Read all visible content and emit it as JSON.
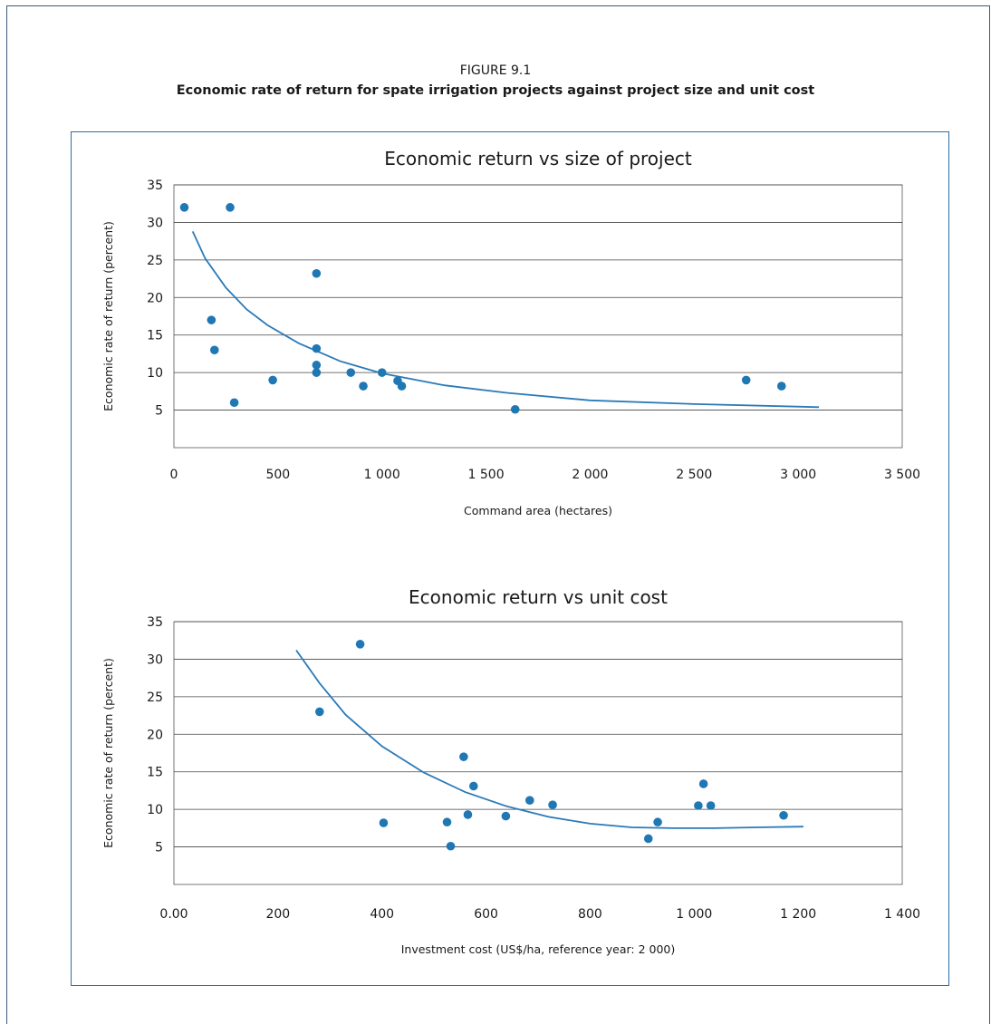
{
  "figure": {
    "label": "FIGURE 9.1",
    "title": "Economic rate of return for spate irrigation projects against project size and unit cost"
  },
  "chart_data": [
    {
      "type": "scatter",
      "title": "Economic return vs size of project",
      "xlabel": "Command area (hectares)",
      "ylabel": "Economic rate of return (percent)",
      "xlim": [
        0,
        3500
      ],
      "ylim": [
        0,
        35
      ],
      "x_ticks": [
        0,
        500,
        1000,
        1500,
        2000,
        2500,
        3000,
        3500
      ],
      "x_tick_labels": [
        "0",
        "500",
        "1 000",
        "1 500",
        "2 000",
        "2 500",
        "3 000",
        "3 500"
      ],
      "y_ticks": [
        5,
        10,
        15,
        20,
        25,
        30,
        35
      ],
      "y_tick_labels": [
        "5",
        "10",
        "15",
        "20",
        "25",
        "30",
        "35"
      ],
      "grid": "horizontal",
      "marker_color": "#1f77b4",
      "trend_color": "#2a7ab8",
      "points": [
        {
          "x": 50,
          "y": 32
        },
        {
          "x": 270,
          "y": 32
        },
        {
          "x": 180,
          "y": 17
        },
        {
          "x": 195,
          "y": 13
        },
        {
          "x": 290,
          "y": 6
        },
        {
          "x": 475,
          "y": 9
        },
        {
          "x": 685,
          "y": 23.2
        },
        {
          "x": 685,
          "y": 13.2
        },
        {
          "x": 685,
          "y": 11
        },
        {
          "x": 685,
          "y": 10
        },
        {
          "x": 850,
          "y": 10
        },
        {
          "x": 910,
          "y": 8.2
        },
        {
          "x": 1000,
          "y": 10
        },
        {
          "x": 1075,
          "y": 8.9
        },
        {
          "x": 1095,
          "y": 8.2
        },
        {
          "x": 1640,
          "y": 5.1
        },
        {
          "x": 2750,
          "y": 9
        },
        {
          "x": 2920,
          "y": 8.2
        }
      ],
      "trend": {
        "x": [
          90,
          150,
          250,
          350,
          450,
          600,
          800,
          1000,
          1300,
          1600,
          2000,
          2500,
          3100
        ],
        "y": [
          28.8,
          25.2,
          21.3,
          18.4,
          16.3,
          13.9,
          11.5,
          9.9,
          8.3,
          7.3,
          6.3,
          5.8,
          5.4
        ]
      }
    },
    {
      "type": "scatter",
      "title": "Economic return vs unit cost",
      "xlabel": "Investment cost (US$/ha, reference year: 2 000)",
      "ylabel": "Economic rate of return (percent)",
      "xlim": [
        0,
        1400
      ],
      "ylim": [
        0,
        35
      ],
      "x_ticks": [
        0,
        200,
        400,
        600,
        800,
        1000,
        1200,
        1400
      ],
      "x_tick_labels": [
        "0.00",
        "200",
        "400",
        "600",
        "800",
        "1 000",
        "1 200",
        "1 400"
      ],
      "y_ticks": [
        5,
        10,
        15,
        20,
        25,
        30,
        35
      ],
      "y_tick_labels": [
        "5",
        "10",
        "15",
        "20",
        "25",
        "30",
        "35"
      ],
      "grid": "horizontal",
      "marker_color": "#1f77b4",
      "trend_color": "#2a7ab8",
      "points": [
        {
          "x": 358,
          "y": 32
        },
        {
          "x": 280,
          "y": 23
        },
        {
          "x": 403,
          "y": 8.2
        },
        {
          "x": 525,
          "y": 8.3
        },
        {
          "x": 532,
          "y": 5.1
        },
        {
          "x": 557,
          "y": 17
        },
        {
          "x": 565,
          "y": 9.3
        },
        {
          "x": 576,
          "y": 13.1
        },
        {
          "x": 638,
          "y": 9.1
        },
        {
          "x": 684,
          "y": 11.2
        },
        {
          "x": 728,
          "y": 10.6
        },
        {
          "x": 912,
          "y": 6.1
        },
        {
          "x": 930,
          "y": 8.3
        },
        {
          "x": 1008,
          "y": 10.5
        },
        {
          "x": 1018,
          "y": 13.4
        },
        {
          "x": 1032,
          "y": 10.5
        },
        {
          "x": 1172,
          "y": 9.2
        }
      ],
      "trend": {
        "x": [
          235,
          280,
          330,
          400,
          480,
          560,
          640,
          720,
          800,
          880,
          960,
          1040,
          1120,
          1210
        ],
        "y": [
          31.2,
          26.8,
          22.6,
          18.4,
          14.9,
          12.3,
          10.4,
          9.0,
          8.1,
          7.6,
          7.5,
          7.5,
          7.6,
          7.7
        ]
      }
    }
  ]
}
